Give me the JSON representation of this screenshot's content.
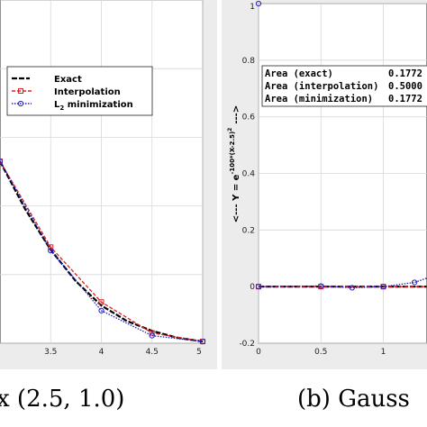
{
  "chart_data": [
    {
      "type": "line",
      "title": "",
      "xlabel": "",
      "ylabel": "",
      "x_ticks": [
        "3.5",
        "4",
        "4.5",
        "5"
      ],
      "xlim": [
        3.0,
        5.0
      ],
      "ylim": [
        0.0,
        1.0
      ],
      "grid": true,
      "legend_position": "top-left",
      "legend": {
        "exact": "Exact",
        "interpolation": "Interpolation",
        "l2_base": "L",
        "l2_sub": "2",
        "l2_rest": " minimization"
      },
      "colors": {
        "exact": "#000000",
        "interpolation": "#e02020",
        "minimization": "#2020c0"
      },
      "series": [
        {
          "name": "Exact",
          "x": [
            3.0,
            3.25,
            3.5,
            3.75,
            4.0,
            4.25,
            4.5,
            4.75,
            5.0
          ],
          "y": [
            0.53,
            0.39,
            0.272,
            0.18,
            0.11,
            0.065,
            0.036,
            0.016,
            0.005
          ]
        },
        {
          "name": "Interpolation",
          "x": [
            3.0,
            3.5,
            4.0,
            4.5,
            5.0
          ],
          "y": [
            0.53,
            0.28,
            0.12,
            0.03,
            0.005
          ]
        },
        {
          "name": "L2 minimization",
          "x": [
            3.0,
            3.5,
            4.0,
            4.5,
            5.0
          ],
          "y": [
            0.53,
            0.27,
            0.095,
            0.022,
            0.005
          ]
        }
      ]
    },
    {
      "type": "line",
      "title": "",
      "xlabel": "",
      "ylabel": "<--- Y = e^{-100*(X-2.5)^2} --->",
      "ylabel_parts": {
        "prefix": "<--- Y = e",
        "exponent": "-100*(X-2.5)",
        "exp_power": "2",
        "suffix": "--->"
      },
      "x_ticks": [
        "0",
        "0.5",
        "1"
      ],
      "y_ticks": [
        "-0.2",
        "0",
        "0.2",
        "0.4",
        "0.6",
        "0.8",
        "1"
      ],
      "xlim": [
        0.0,
        1.35
      ],
      "ylim": [
        -0.2,
        1.0
      ],
      "grid": true,
      "annotation_box": [
        {
          "label": "Area (exact)",
          "value": "0.1772"
        },
        {
          "label": "Area (interpolation)",
          "value": "0.5000"
        },
        {
          "label": "Area (minimization)",
          "value": "0.1772"
        }
      ],
      "series": [
        {
          "name": "Exact",
          "x": [
            0.0,
            0.5,
            1.0,
            1.35
          ],
          "y": [
            0.0,
            0.0,
            0.0,
            0.0
          ]
        },
        {
          "name": "Interpolation",
          "x": [
            0.0,
            0.5,
            1.0,
            1.35
          ],
          "y": [
            0.0,
            0.0,
            0.0,
            0.0
          ]
        },
        {
          "name": "L2 minimization",
          "x": [
            0.0,
            0.5,
            0.75,
            1.0,
            1.25,
            1.35
          ],
          "y": [
            0.0,
            0.002,
            -0.004,
            0.0,
            0.015,
            0.03
          ]
        }
      ]
    }
  ],
  "captions": {
    "a": "x (2.5, 1.0)",
    "b": "(b) Gauss"
  }
}
